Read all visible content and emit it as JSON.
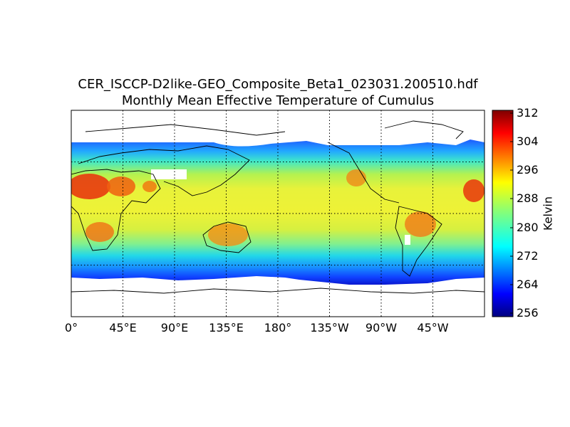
{
  "map": {
    "title_line1": "CER_ISCCP-D2like-GEO_Composite_Beta1_023031.200510.hdf",
    "title_line2": "Monthly Mean Effective Temperature of Cumulus",
    "projection": "cylindrical",
    "lon_ticks": [
      "0°",
      "45°E",
      "90°E",
      "135°E",
      "180°",
      "135°W",
      "90°W",
      "45°W"
    ],
    "grid": "dotted"
  },
  "colorbar": {
    "label": "Kelvin",
    "tick_labels": [
      "312",
      "304",
      "296",
      "288",
      "280",
      "272",
      "264",
      "256"
    ],
    "min": 256,
    "max": 312,
    "colormap": "jet"
  }
}
